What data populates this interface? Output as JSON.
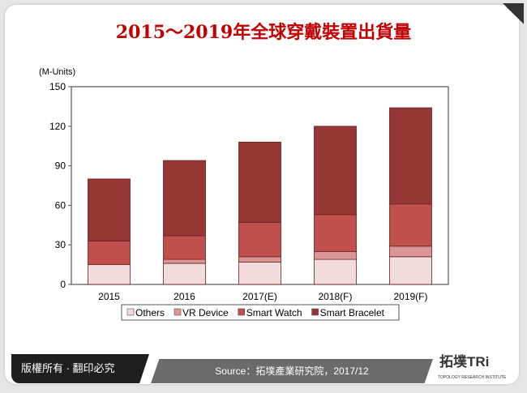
{
  "header": {
    "title": "2015～2019年全球穿戴裝置出貨量"
  },
  "footer": {
    "copyright": "版權所有 · 翻印必究",
    "source": "Source：拓墣產業研究院，2017/12",
    "logo_text": "拓墣TRi",
    "logo_subtext": "TOPOLOGY RESEARCH INSTITUTE"
  },
  "chart_data": {
    "type": "bar",
    "stacked": true,
    "title": "2015～2019年全球穿戴裝置出貨量",
    "ylabel": "(M-Units)",
    "xlabel": "",
    "ylim": [
      0,
      150
    ],
    "yticks": [
      "0",
      "30",
      "60",
      "90",
      "120",
      "150"
    ],
    "grid": false,
    "legend_position": "bottom",
    "categories": [
      "2015",
      "2016",
      "2017(E)",
      "2018(F)",
      "2019(F)"
    ],
    "series": [
      {
        "name": "Others",
        "color": "#f2dcdb",
        "values": [
          15,
          16,
          17,
          19,
          21
        ]
      },
      {
        "name": "VR Device",
        "color": "#d99694",
        "values": [
          0,
          3,
          4,
          6,
          8
        ]
      },
      {
        "name": "Smart Watch",
        "color": "#c0504d",
        "values": [
          18,
          18,
          26,
          28,
          32
        ]
      },
      {
        "name": "Smart Bracelet",
        "color": "#953735",
        "values": [
          47,
          57,
          61,
          67,
          73
        ]
      }
    ]
  }
}
